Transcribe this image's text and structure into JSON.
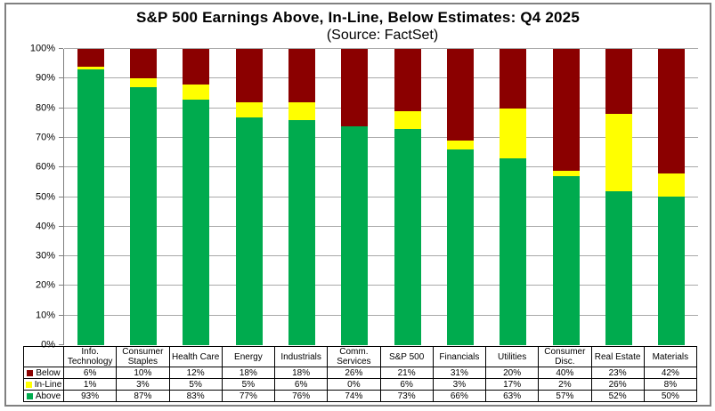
{
  "title": "S&P 500 Earnings Above, In-Line, Below Estimates: Q4 2025",
  "subtitle": "(Source: FactSet)",
  "colors": {
    "below": "#8B0000",
    "in_line": "#FFFF00",
    "above": "#00AB4E",
    "gridline": "#A9A9A9",
    "axis": "#808080",
    "table_border": "#000000",
    "frame_border": "#808080"
  },
  "chart_data": {
    "type": "bar",
    "stacked": true,
    "stack_total": 100,
    "title": "S&P 500 Earnings Above, In-Line, Below Estimates: Q4 2025",
    "subtitle": "(Source: FactSet)",
    "categories": [
      "Info.\nTechnology",
      "Consumer\nStaples",
      "Health Care",
      "Energy",
      "Industrials",
      "Comm.\nServices",
      "S&P 500",
      "Financials",
      "Utilities",
      "Consumer\nDisc.",
      "Real Estate",
      "Materials"
    ],
    "series": [
      {
        "name": "Below",
        "color": "#8B0000",
        "values": [
          6,
          10,
          12,
          18,
          18,
          26,
          21,
          31,
          20,
          40,
          23,
          42
        ]
      },
      {
        "name": "In-Line",
        "color": "#FFFF00",
        "values": [
          1,
          3,
          5,
          5,
          6,
          0,
          6,
          3,
          17,
          2,
          26,
          8
        ]
      },
      {
        "name": "Above",
        "color": "#00AB4E",
        "values": [
          93,
          87,
          83,
          77,
          76,
          74,
          73,
          66,
          63,
          57,
          52,
          50
        ]
      }
    ],
    "value_suffix": "%",
    "ylim": [
      0,
      100
    ],
    "y_tick_labels": [
      "0%",
      "10%",
      "20%",
      "30%",
      "40%",
      "50%",
      "60%",
      "70%",
      "80%",
      "90%",
      "100%"
    ],
    "grid": true,
    "legend_position": "table-left"
  }
}
